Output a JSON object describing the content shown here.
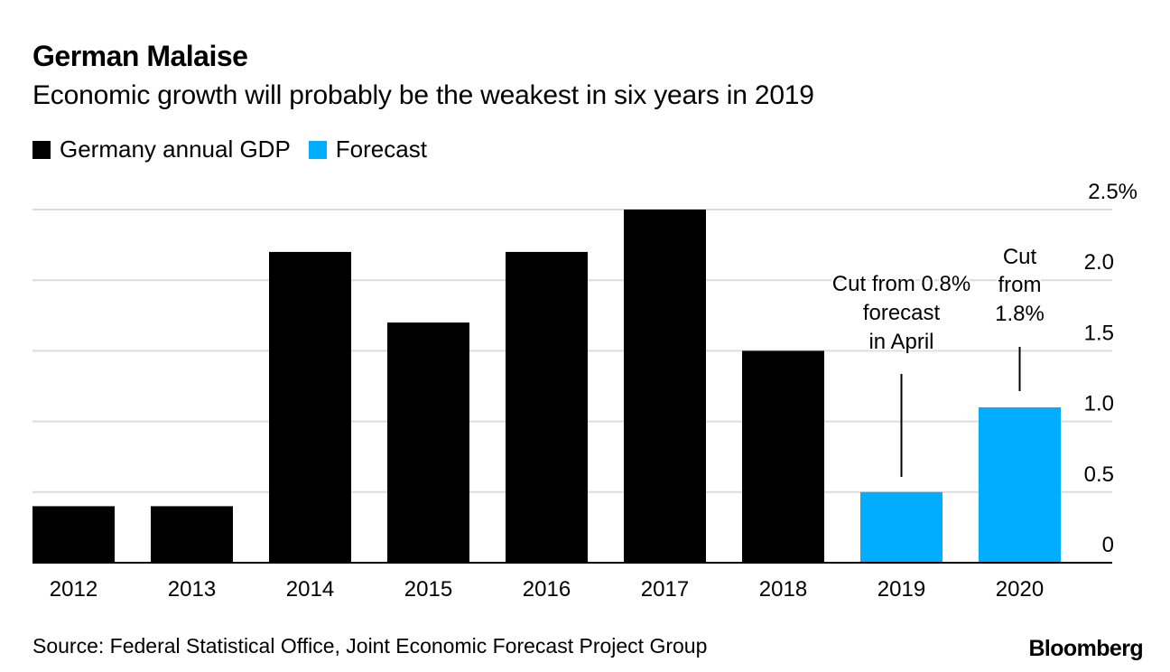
{
  "header": {
    "title": "German Malaise",
    "subtitle": "Economic growth will probably be the weakest in six years in 2019"
  },
  "legend": [
    {
      "label": "Germany annual GDP",
      "color": "#000000"
    },
    {
      "label": "Forecast",
      "color": "#00adff"
    }
  ],
  "footer": {
    "source": "Source: Federal Statistical Office, Joint Economic Forecast Project Group",
    "brand": "Bloomberg"
  },
  "chart_data": {
    "type": "bar",
    "title": "German Malaise",
    "subtitle": "Economic growth will probably be the weakest in six years in 2019",
    "xlabel": "",
    "ylabel": "",
    "categories": [
      "2012",
      "2013",
      "2014",
      "2015",
      "2016",
      "2017",
      "2018",
      "2019",
      "2020"
    ],
    "series": [
      {
        "name": "Germany annual GDP",
        "color": "#000000",
        "values": [
          0.4,
          0.4,
          2.2,
          1.7,
          2.2,
          2.5,
          1.5,
          null,
          null
        ]
      },
      {
        "name": "Forecast",
        "color": "#00adff",
        "values": [
          null,
          null,
          null,
          null,
          null,
          null,
          null,
          0.5,
          1.1
        ]
      }
    ],
    "ylim": [
      0,
      2.5
    ],
    "yticks": [
      0,
      0.5,
      1.0,
      1.5,
      2.0,
      2.5
    ],
    "ytick_labels": [
      "0",
      "0.5",
      "1.0",
      "1.5",
      "2.0",
      "2.5%"
    ],
    "y_axis_side": "right",
    "grid": true,
    "legend_position": "top-left",
    "annotations": [
      {
        "category": "2019",
        "lines": [
          "Cut from 0.8%",
          "forecast",
          "in April"
        ]
      },
      {
        "category": "2020",
        "lines": [
          "Cut",
          "from",
          "1.8%"
        ]
      }
    ]
  }
}
